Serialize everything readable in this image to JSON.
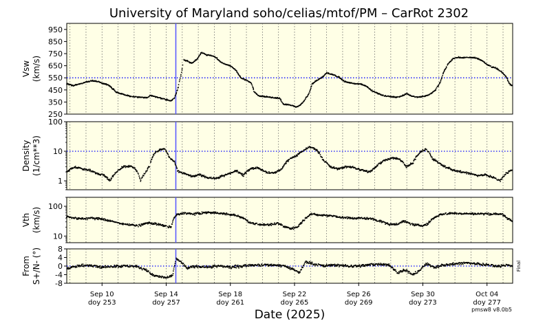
{
  "chart_data": {
    "type": "scatter",
    "title": "University of Maryland  soho/celias/mtof/PM – CarRot 2302",
    "xlabel": "Date (2025)",
    "xlim_doy": [
      250.8,
      278.6
    ],
    "xticks": [
      {
        "doy": 253,
        "date": "Sep 10",
        "label": "doy 253"
      },
      {
        "doy": 257,
        "date": "Sep 14",
        "label": "doy 257"
      },
      {
        "doy": 261,
        "date": "Sep 18",
        "label": "doy 261"
      },
      {
        "doy": 265,
        "date": "Sep 22",
        "label": "doy 265"
      },
      {
        "doy": 269,
        "date": "Sep 26",
        "label": "doy 269"
      },
      {
        "doy": 273,
        "date": "Sep 30",
        "label": "doy 273"
      },
      {
        "doy": 277,
        "date": "Oct 04",
        "label": "doy 277"
      }
    ],
    "vertical_marker_doy": 257.6,
    "footer": "pmsw8 v8.0b5",
    "side_label": "Final",
    "panels": [
      {
        "id": "vsw",
        "ylabel": "Vsw",
        "yunits": "(km/s)",
        "scale": "linear",
        "ylim": [
          250,
          1000
        ],
        "yticks": [
          "950",
          "850",
          "750",
          "650",
          "550",
          "450",
          "350",
          "250"
        ],
        "ytick_values": [
          950,
          850,
          750,
          650,
          550,
          450,
          350,
          250
        ],
        "reference": 550,
        "grid": true,
        "keypoints": [
          [
            250.8,
            500
          ],
          [
            251.2,
            485
          ],
          [
            251.6,
            500
          ],
          [
            252.0,
            515
          ],
          [
            252.4,
            525
          ],
          [
            252.8,
            520
          ],
          [
            253.1,
            500
          ],
          [
            253.4,
            490
          ],
          [
            253.6,
            470
          ],
          [
            253.9,
            430
          ],
          [
            254.3,
            415
          ],
          [
            254.8,
            395
          ],
          [
            255.3,
            390
          ],
          [
            255.8,
            385
          ],
          [
            256.0,
            405
          ],
          [
            256.3,
            395
          ],
          [
            256.7,
            380
          ],
          [
            257.0,
            370
          ],
          [
            257.3,
            360
          ],
          [
            257.5,
            380
          ],
          [
            257.7,
            450
          ],
          [
            257.9,
            560
          ],
          [
            258.1,
            700
          ],
          [
            258.3,
            690
          ],
          [
            258.6,
            670
          ],
          [
            258.9,
            700
          ],
          [
            259.2,
            760
          ],
          [
            259.5,
            740
          ],
          [
            259.8,
            735
          ],
          [
            260.1,
            720
          ],
          [
            260.4,
            680
          ],
          [
            260.7,
            660
          ],
          [
            261.0,
            650
          ],
          [
            261.3,
            620
          ],
          [
            261.5,
            580
          ],
          [
            261.7,
            545
          ],
          [
            262.0,
            530
          ],
          [
            262.3,
            510
          ],
          [
            262.5,
            430
          ],
          [
            262.8,
            400
          ],
          [
            263.2,
            395
          ],
          [
            263.7,
            385
          ],
          [
            264.1,
            380
          ],
          [
            264.3,
            330
          ],
          [
            264.6,
            328
          ],
          [
            264.9,
            320
          ],
          [
            265.1,
            305
          ],
          [
            265.4,
            330
          ],
          [
            265.6,
            360
          ],
          [
            265.9,
            420
          ],
          [
            266.1,
            500
          ],
          [
            266.4,
            530
          ],
          [
            266.7,
            550
          ],
          [
            267.0,
            590
          ],
          [
            267.3,
            580
          ],
          [
            267.5,
            570
          ],
          [
            267.8,
            555
          ],
          [
            268.1,
            520
          ],
          [
            268.6,
            505
          ],
          [
            269.1,
            500
          ],
          [
            269.5,
            480
          ],
          [
            269.8,
            445
          ],
          [
            270.2,
            420
          ],
          [
            270.6,
            400
          ],
          [
            271.0,
            395
          ],
          [
            271.4,
            390
          ],
          [
            271.7,
            400
          ],
          [
            272.0,
            420
          ],
          [
            272.3,
            400
          ],
          [
            272.6,
            390
          ],
          [
            272.9,
            395
          ],
          [
            273.2,
            400
          ],
          [
            273.5,
            420
          ],
          [
            273.8,
            450
          ],
          [
            274.1,
            520
          ],
          [
            274.3,
            600
          ],
          [
            274.6,
            670
          ],
          [
            274.9,
            710
          ],
          [
            275.2,
            720
          ],
          [
            275.6,
            715
          ],
          [
            276.0,
            720
          ],
          [
            276.4,
            710
          ],
          [
            276.7,
            690
          ],
          [
            277.0,
            660
          ],
          [
            277.3,
            640
          ],
          [
            277.6,
            630
          ],
          [
            277.9,
            600
          ],
          [
            278.2,
            560
          ],
          [
            278.4,
            500
          ],
          [
            278.6,
            480
          ]
        ]
      },
      {
        "id": "density",
        "ylabel": "Density",
        "yunits": "(1/cm**3)",
        "scale": "log",
        "ylim": [
          0.5,
          100
        ],
        "yticks": [
          "100",
          "10",
          "1"
        ],
        "ytick_values": [
          100,
          10,
          1
        ],
        "reference": 10,
        "grid": true,
        "keypoints": [
          [
            250.8,
            2.0
          ],
          [
            251.3,
            3.0
          ],
          [
            251.8,
            2.5
          ],
          [
            252.3,
            2.2
          ],
          [
            252.7,
            1.8
          ],
          [
            253.1,
            1.6
          ],
          [
            253.5,
            1.0
          ],
          [
            253.9,
            2.0
          ],
          [
            254.3,
            3.0
          ],
          [
            254.7,
            3.2
          ],
          [
            255.1,
            2.5
          ],
          [
            255.4,
            1.0
          ],
          [
            255.7,
            1.8
          ],
          [
            256.0,
            3.5
          ],
          [
            256.3,
            9.0
          ],
          [
            256.6,
            11.0
          ],
          [
            256.9,
            12.0
          ],
          [
            257.2,
            6.0
          ],
          [
            257.5,
            4.5
          ],
          [
            257.7,
            2.2
          ],
          [
            258.1,
            1.8
          ],
          [
            258.6,
            1.4
          ],
          [
            259.1,
            1.6
          ],
          [
            259.6,
            1.3
          ],
          [
            260.1,
            1.2
          ],
          [
            260.6,
            1.5
          ],
          [
            261.0,
            1.8
          ],
          [
            261.4,
            2.2
          ],
          [
            261.8,
            1.5
          ],
          [
            262.2,
            2.5
          ],
          [
            262.7,
            2.8
          ],
          [
            263.2,
            2.0
          ],
          [
            263.7,
            1.8
          ],
          [
            264.2,
            2.5
          ],
          [
            264.6,
            5.0
          ],
          [
            265.1,
            7.0
          ],
          [
            265.5,
            10.0
          ],
          [
            265.9,
            14.0
          ],
          [
            266.3,
            12.0
          ],
          [
            266.8,
            5.0
          ],
          [
            267.2,
            3.0
          ],
          [
            267.7,
            2.5
          ],
          [
            268.2,
            3.0
          ],
          [
            268.7,
            2.8
          ],
          [
            269.2,
            2.3
          ],
          [
            269.7,
            2.0
          ],
          [
            270.1,
            3.0
          ],
          [
            270.6,
            5.0
          ],
          [
            271.1,
            6.0
          ],
          [
            271.5,
            5.5
          ],
          [
            272.0,
            3.0
          ],
          [
            272.4,
            4.0
          ],
          [
            272.8,
            9.0
          ],
          [
            273.2,
            12.0
          ],
          [
            273.6,
            5.5
          ],
          [
            274.0,
            4.0
          ],
          [
            274.4,
            3.0
          ],
          [
            274.9,
            2.3
          ],
          [
            275.4,
            2.0
          ],
          [
            275.9,
            1.8
          ],
          [
            276.4,
            1.5
          ],
          [
            276.9,
            1.6
          ],
          [
            277.4,
            1.3
          ],
          [
            277.8,
            1.0
          ],
          [
            278.2,
            1.8
          ],
          [
            278.6,
            2.4
          ]
        ]
      },
      {
        "id": "vth",
        "ylabel": "Vth",
        "yunits": "(km/s)",
        "scale": "log",
        "ylim": [
          6,
          200
        ],
        "yticks": [
          "100",
          "10"
        ],
        "ytick_values": [
          100,
          10
        ],
        "reference": null,
        "grid": true,
        "keypoints": [
          [
            250.8,
            45
          ],
          [
            251.5,
            38
          ],
          [
            252.3,
            40
          ],
          [
            253.0,
            38
          ],
          [
            253.5,
            32
          ],
          [
            254.0,
            28
          ],
          [
            254.7,
            24
          ],
          [
            255.3,
            22
          ],
          [
            255.8,
            28
          ],
          [
            256.3,
            26
          ],
          [
            256.9,
            22
          ],
          [
            257.3,
            20
          ],
          [
            257.6,
            50
          ],
          [
            258.1,
            60
          ],
          [
            258.6,
            55
          ],
          [
            259.1,
            58
          ],
          [
            259.6,
            62
          ],
          [
            260.2,
            60
          ],
          [
            260.8,
            55
          ],
          [
            261.3,
            50
          ],
          [
            261.8,
            40
          ],
          [
            262.2,
            28
          ],
          [
            262.8,
            25
          ],
          [
            263.4,
            24
          ],
          [
            264.0,
            26
          ],
          [
            264.4,
            20
          ],
          [
            264.8,
            18
          ],
          [
            265.2,
            20
          ],
          [
            265.6,
            35
          ],
          [
            266.0,
            55
          ],
          [
            266.6,
            50
          ],
          [
            267.3,
            48
          ],
          [
            268.0,
            42
          ],
          [
            268.6,
            40
          ],
          [
            269.2,
            40
          ],
          [
            269.8,
            38
          ],
          [
            270.3,
            32
          ],
          [
            270.9,
            25
          ],
          [
            271.4,
            25
          ],
          [
            271.8,
            32
          ],
          [
            272.3,
            25
          ],
          [
            272.9,
            22
          ],
          [
            273.3,
            25
          ],
          [
            273.6,
            38
          ],
          [
            274.2,
            55
          ],
          [
            275.0,
            58
          ],
          [
            275.8,
            56
          ],
          [
            276.6,
            56
          ],
          [
            277.4,
            56
          ],
          [
            277.9,
            55
          ],
          [
            278.3,
            38
          ],
          [
            278.6,
            32
          ]
        ]
      },
      {
        "id": "from",
        "ylabel": "From",
        "yunits": "S+/N- (°)",
        "scale": "linear",
        "ylim": [
          -8,
          8
        ],
        "yticks": [
          "8",
          "4",
          "0",
          "-4",
          "-8"
        ],
        "ytick_values": [
          8,
          4,
          0,
          -4,
          -8
        ],
        "reference": 0,
        "grid": true,
        "keypoints": [
          [
            250.8,
            -1
          ],
          [
            251.5,
            0
          ],
          [
            252.3,
            0.5
          ],
          [
            253.0,
            -0.5
          ],
          [
            253.8,
            0
          ],
          [
            254.6,
            0
          ],
          [
            255.3,
            -0.5
          ],
          [
            255.8,
            -2
          ],
          [
            256.2,
            -4.5
          ],
          [
            256.7,
            -5
          ],
          [
            257.1,
            -5.5
          ],
          [
            257.4,
            -4
          ],
          [
            257.6,
            3.5
          ],
          [
            257.9,
            2
          ],
          [
            258.3,
            -1
          ],
          [
            258.9,
            0
          ],
          [
            259.6,
            -0.5
          ],
          [
            260.3,
            0
          ],
          [
            261.0,
            -0.5
          ],
          [
            261.7,
            0
          ],
          [
            262.4,
            0.5
          ],
          [
            263.1,
            0.5
          ],
          [
            263.8,
            0.5
          ],
          [
            264.4,
            0
          ],
          [
            264.9,
            -1.5
          ],
          [
            265.3,
            -3
          ],
          [
            265.7,
            2
          ],
          [
            266.2,
            1
          ],
          [
            266.8,
            0
          ],
          [
            267.5,
            0.5
          ],
          [
            268.2,
            0
          ],
          [
            268.9,
            0
          ],
          [
            269.6,
            0.5
          ],
          [
            270.3,
            1
          ],
          [
            270.9,
            0.5
          ],
          [
            271.4,
            -3
          ],
          [
            271.9,
            -2
          ],
          [
            272.4,
            -4
          ],
          [
            272.8,
            -2
          ],
          [
            273.2,
            1
          ],
          [
            273.7,
            -0.5
          ],
          [
            274.3,
            0.5
          ],
          [
            275.0,
            1
          ],
          [
            275.7,
            1.5
          ],
          [
            276.4,
            1
          ],
          [
            277.1,
            0.5
          ],
          [
            277.8,
            0
          ],
          [
            278.3,
            0.5
          ],
          [
            278.6,
            0
          ]
        ]
      }
    ]
  }
}
